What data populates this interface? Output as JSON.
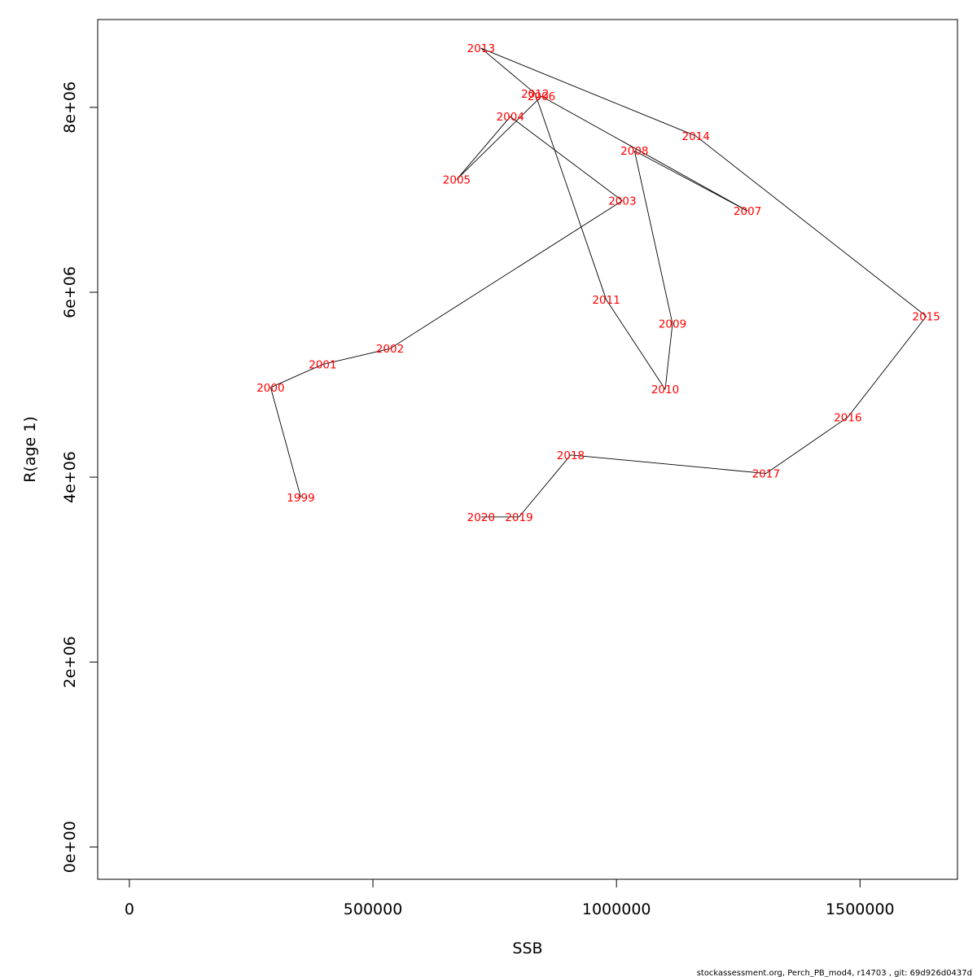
{
  "chart_data": {
    "type": "line",
    "title": "",
    "xlabel": "SSB",
    "ylabel": "R(age 1)",
    "xlim": [
      -65000,
      1700000
    ],
    "ylim": [
      -350000,
      8950000
    ],
    "x_ticks": [
      {
        "value": 0,
        "label": "0"
      },
      {
        "value": 500000,
        "label": "500000"
      },
      {
        "value": 1000000,
        "label": "1000000"
      },
      {
        "value": 1500000,
        "label": "1500000"
      }
    ],
    "y_ticks": [
      {
        "value": 0,
        "label": "0e+00"
      },
      {
        "value": 2000000,
        "label": "2e+06"
      },
      {
        "value": 4000000,
        "label": "4e+06"
      },
      {
        "value": 6000000,
        "label": "6e+06"
      },
      {
        "value": 8000000,
        "label": "8e+06"
      }
    ],
    "grid": false,
    "line_color": "#000000",
    "label_color": "#ff0000",
    "points": [
      {
        "label": "1999",
        "x": 352000,
        "y": 3780000
      },
      {
        "label": "2000",
        "x": 290000,
        "y": 4970000
      },
      {
        "label": "2001",
        "x": 397000,
        "y": 5220000
      },
      {
        "label": "2002",
        "x": 535000,
        "y": 5390000
      },
      {
        "label": "2003",
        "x": 1012000,
        "y": 6990000
      },
      {
        "label": "2004",
        "x": 782000,
        "y": 7900000
      },
      {
        "label": "2005",
        "x": 672000,
        "y": 7220000
      },
      {
        "label": "2006",
        "x": 846000,
        "y": 8120000
      },
      {
        "label": "2007",
        "x": 1269000,
        "y": 6880000
      },
      {
        "label": "2008",
        "x": 1037000,
        "y": 7530000
      },
      {
        "label": "2009",
        "x": 1115000,
        "y": 5660000
      },
      {
        "label": "2010",
        "x": 1100000,
        "y": 4950000
      },
      {
        "label": "2011",
        "x": 979000,
        "y": 5920000
      },
      {
        "label": "2012",
        "x": 833000,
        "y": 8150000
      },
      {
        "label": "2013",
        "x": 722000,
        "y": 8640000
      },
      {
        "label": "2014",
        "x": 1163000,
        "y": 7690000
      },
      {
        "label": "2015",
        "x": 1636000,
        "y": 5740000
      },
      {
        "label": "2016",
        "x": 1475000,
        "y": 4650000
      },
      {
        "label": "2017",
        "x": 1307000,
        "y": 4040000
      },
      {
        "label": "2018",
        "x": 906000,
        "y": 4240000
      },
      {
        "label": "2019",
        "x": 800000,
        "y": 3570000
      },
      {
        "label": "2020",
        "x": 722000,
        "y": 3570000
      }
    ]
  },
  "footer": "stockassessment.org, Perch_PB_mod4, r14703 , git: 69d926d0437d"
}
